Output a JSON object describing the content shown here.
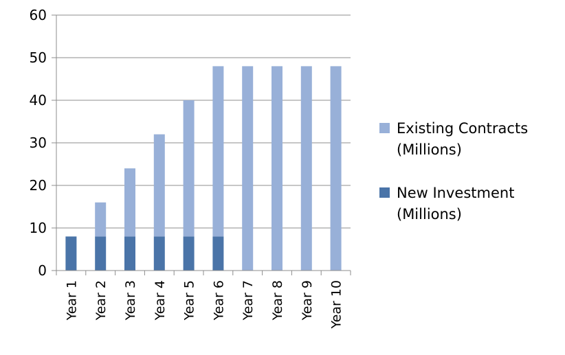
{
  "chart_data": {
    "type": "bar",
    "stacked": true,
    "categories": [
      "Year 1",
      "Year 2",
      "Year 3",
      "Year 4",
      "Year 5",
      "Year 6",
      "Year 7",
      "Year 8",
      "Year 9",
      "Year 10"
    ],
    "series": [
      {
        "name": "New Investment (Millions)",
        "legend_lines": [
          "New Investment",
          "(Millions)"
        ],
        "color": "#4a74a8",
        "values": [
          8,
          8,
          8,
          8,
          8,
          8,
          0,
          0,
          0,
          0
        ]
      },
      {
        "name": "Existing Contracts (Millions)",
        "legend_lines": [
          "Existing Contracts",
          "(Millions)"
        ],
        "color": "#98b0d8",
        "values": [
          0,
          8,
          16,
          24,
          32,
          40,
          48,
          48,
          48,
          48
        ]
      }
    ],
    "ylim": [
      0,
      60
    ],
    "yticks": [
      0,
      10,
      20,
      30,
      40,
      50,
      60
    ],
    "grid": true,
    "legend_position": "right",
    "legend_order": [
      "Existing Contracts (Millions)",
      "New Investment (Millions)"
    ],
    "title": "",
    "xlabel": "",
    "ylabel": ""
  }
}
